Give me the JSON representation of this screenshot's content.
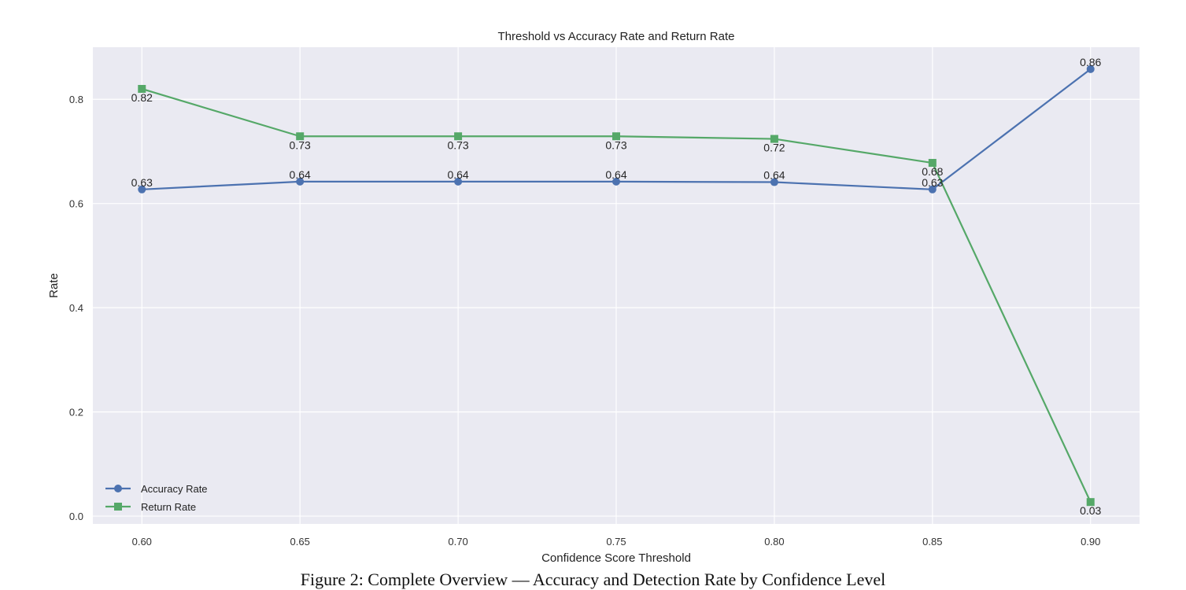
{
  "colors": {
    "plot_background": "#eaeaf2",
    "grid": "#ffffff",
    "accuracy_series": "#4c72b0",
    "return_series": "#55a868"
  },
  "caption": "Figure 2: Complete Overview — Accuracy and Detection Rate by Confidence Level",
  "chart_data": {
    "type": "line",
    "title": "Threshold vs Accuracy Rate and Return Rate",
    "xlabel": "Confidence Score Threshold",
    "ylabel": "Rate",
    "x": [
      0.6,
      0.65,
      0.7,
      0.75,
      0.8,
      0.85,
      0.9
    ],
    "x_tick_labels": [
      "0.60",
      "0.65",
      "0.70",
      "0.75",
      "0.80",
      "0.85",
      "0.90"
    ],
    "y_ticks": [
      0.0,
      0.2,
      0.4,
      0.6,
      0.8
    ],
    "y_tick_labels": [
      "0.0",
      "0.2",
      "0.4",
      "0.6",
      "0.8"
    ],
    "xlim": [
      0.5845,
      0.9155
    ],
    "ylim": [
      -0.015,
      0.9
    ],
    "grid": true,
    "legend_position": "lower-left",
    "series": [
      {
        "name": "Accuracy Rate",
        "marker": "circle",
        "color": "#4c72b0",
        "values": [
          0.627,
          0.642,
          0.642,
          0.642,
          0.641,
          0.627,
          0.858
        ],
        "labels": [
          "0.63",
          "0.64",
          "0.64",
          "0.64",
          "0.64",
          "0.63",
          "0.86"
        ]
      },
      {
        "name": "Return Rate",
        "marker": "square",
        "color": "#55a868",
        "values": [
          0.82,
          0.729,
          0.729,
          0.729,
          0.724,
          0.678,
          0.027
        ],
        "labels": [
          "0.82",
          "0.73",
          "0.73",
          "0.73",
          "0.72",
          "0.68",
          "0.03"
        ]
      }
    ]
  }
}
